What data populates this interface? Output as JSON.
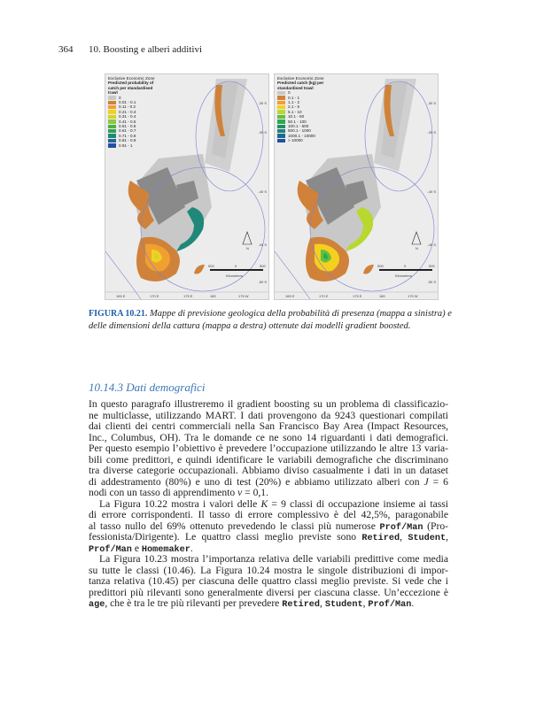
{
  "header": {
    "page_number": "364",
    "chapter_title": "10. Boosting e alberi additivi"
  },
  "figure": {
    "left_map": {
      "eez_label": "Exclusive Economic Zone",
      "legend_title": "Predicted probability of catch per standardised trawl",
      "legend": [
        {
          "label": "0",
          "color": "#c8c8c8"
        },
        {
          "label": "0.01 - 0.1",
          "color": "#d0823a"
        },
        {
          "label": "0.11 - 0.2",
          "color": "#f0a030"
        },
        {
          "label": "0.21 - 0.3",
          "color": "#f5d020"
        },
        {
          "label": "0.31 - 0.4",
          "color": "#c8d830"
        },
        {
          "label": "0.41 - 0.5",
          "color": "#90c840"
        },
        {
          "label": "0.51 - 0.6",
          "color": "#50b040"
        },
        {
          "label": "0.61 - 0.7",
          "color": "#30a050"
        },
        {
          "label": "0.71 - 0.8",
          "color": "#208878"
        },
        {
          "label": "0.81 - 0.9",
          "color": "#206890"
        },
        {
          "label": "0.91 - 1",
          "color": "#2050a0"
        }
      ]
    },
    "right_map": {
      "eez_label": "Exclusive Economic Zone",
      "legend_title": "Predicted catch (kg) per standardised trawl",
      "legend": [
        {
          "label": "0",
          "color": "#c8c8c8"
        },
        {
          "label": "0.1 - 1",
          "color": "#d0823a"
        },
        {
          "label": "1.1 - 2",
          "color": "#f0a030"
        },
        {
          "label": "2.1 - 5",
          "color": "#f5d020"
        },
        {
          "label": "5.1 - 10",
          "color": "#b8d830"
        },
        {
          "label": "10.1 - 50",
          "color": "#60c040"
        },
        {
          "label": "50.1 - 100",
          "color": "#30a850"
        },
        {
          "label": "100.1 - 500",
          "color": "#209060"
        },
        {
          "label": "500.1 - 1000",
          "color": "#208080"
        },
        {
          "label": "1000.1 - 10000",
          "color": "#206890"
        },
        {
          "label": "> 10000",
          "color": "#2050a0"
        }
      ]
    },
    "lat_labels": [
      "-30 S",
      "-35 S",
      "-40 S",
      "-45 S",
      "-50 S"
    ],
    "lon_labels": [
      "165 E",
      "170 E",
      "175 E",
      "180",
      "175 W"
    ],
    "scale_labels": [
      "500",
      "0",
      "500"
    ],
    "scale_unit": "Kilometers",
    "north_label": "N",
    "caption_label": "FIGURA 10.21.",
    "caption_text": "Mappe di previsione geologica della probabilità di presenza (mappa a sinistra) e delle dimensioni della cattura (mappa a destra) ottenute dai modelli gradient boosted."
  },
  "section": {
    "title": "10.14.3  Dati demografici"
  },
  "body_lines": [
    {
      "s": [
        [
          "n",
          "In questo paragrafo illustreremo il gradient boosting su un problema di classificazio-"
        ]
      ]
    },
    {
      "s": [
        [
          "n",
          "ne multiclasse, utilizzando MART. I dati provengono da 9243 questionari compilati"
        ]
      ]
    },
    {
      "s": [
        [
          "n",
          "dai clienti dei centri commerciali nella San Francisco Bay Area (Impact Resources,"
        ]
      ]
    },
    {
      "s": [
        [
          "n",
          "Inc., Columbus, OH). Tra le domande ce ne sono 14 riguardanti i dati demografici."
        ]
      ]
    },
    {
      "s": [
        [
          "n",
          "Per questo esempio l’obiettivo è prevedere l’occupazione utilizzando le altre 13 varia-"
        ]
      ]
    },
    {
      "s": [
        [
          "n",
          "bili come predittori, e quindi identificare le variabili demografiche che discriminano"
        ]
      ]
    },
    {
      "s": [
        [
          "n",
          "tra diverse categorie occupazionali. Abbiamo diviso casualmente i dati in un dataset"
        ]
      ]
    },
    {
      "s": [
        [
          "n",
          "di addestramento (80%) e uno di test (20%) e abbiamo utilizzato alberi con "
        ],
        [
          "i",
          "J"
        ],
        [
          "n",
          " = 6"
        ]
      ]
    },
    {
      "last": true,
      "s": [
        [
          "n",
          "nodi con un tasso di apprendimento "
        ],
        [
          "i",
          "ν"
        ],
        [
          "n",
          " = 0,1."
        ]
      ]
    },
    {
      "ind": true,
      "s": [
        [
          "n",
          "La Figura 10.22 mostra i valori delle "
        ],
        [
          "i",
          "K"
        ],
        [
          "n",
          " = 9 classi di occupazione insieme ai tassi"
        ]
      ]
    },
    {
      "s": [
        [
          "n",
          "di errore corrispondenti. Il tasso di errore complessivo è del 42,5%, paragonabile"
        ]
      ]
    },
    {
      "s": [
        [
          "n",
          "al tasso nullo del 69% ottenuto prevedendo le classi più numerose "
        ],
        [
          "c",
          "Prof/Man"
        ],
        [
          "n",
          " (Pro-"
        ]
      ]
    },
    {
      "s": [
        [
          "n",
          "fessionista/Dirigente). Le quattro classi meglio previste sono "
        ],
        [
          "c",
          "Retired"
        ],
        [
          "n",
          ", "
        ],
        [
          "c",
          "Student"
        ],
        [
          "n",
          ","
        ]
      ]
    },
    {
      "last": true,
      "s": [
        [
          "c",
          "Prof/Man"
        ],
        [
          "n",
          " e "
        ],
        [
          "c",
          "Homemaker"
        ],
        [
          "n",
          "."
        ]
      ]
    },
    {
      "ind": true,
      "s": [
        [
          "n",
          "La Figura 10.23 mostra l’importanza relativa delle variabili predittive come media"
        ]
      ]
    },
    {
      "s": [
        [
          "n",
          "su tutte le classi (10.46). La Figura 10.24 mostra le singole distribuzioni di impor-"
        ]
      ]
    },
    {
      "s": [
        [
          "n",
          "tanza relativa (10.45) per ciascuna delle quattro classi meglio previste. Si vede che i"
        ]
      ]
    },
    {
      "s": [
        [
          "n",
          "predittori più rilevanti sono generalmente diversi per ciascuna classe. Un’eccezione è"
        ]
      ]
    },
    {
      "last": true,
      "s": [
        [
          "c",
          "age"
        ],
        [
          "n",
          ", che è tra le tre più rilevanti per prevedere "
        ],
        [
          "c",
          "Retired"
        ],
        [
          "n",
          ", "
        ],
        [
          "c",
          "Student"
        ],
        [
          "n",
          ", "
        ],
        [
          "c",
          "Prof/Man"
        ],
        [
          "n",
          "."
        ]
      ]
    }
  ]
}
